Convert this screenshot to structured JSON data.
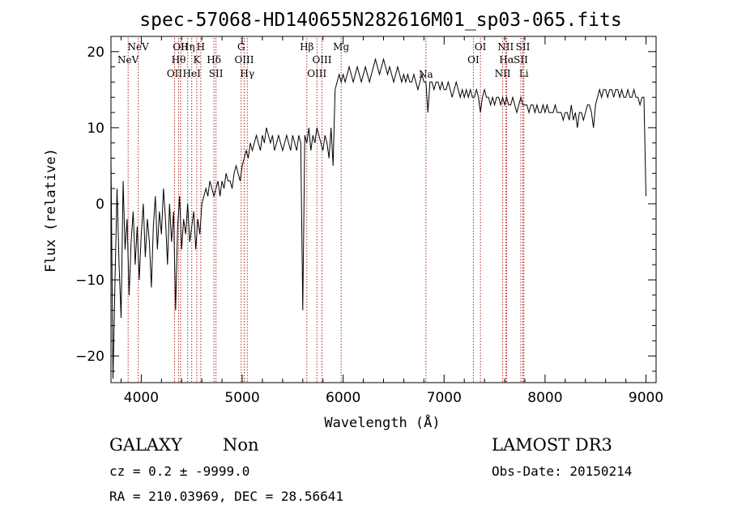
{
  "chart_data": {
    "type": "line",
    "title": "spec-57068-HD140655N282616M01_sp03-065.fits",
    "xlabel": "Wavelength (Å)",
    "ylabel": "Flux (relative)",
    "xlim": [
      3700,
      9100
    ],
    "ylim": [
      -23.5,
      22
    ],
    "xticks": [
      4000,
      5000,
      6000,
      7000,
      8000,
      9000
    ],
    "yticks": [
      -20,
      -10,
      0,
      10,
      20
    ],
    "grid": false,
    "line_color": "#000000",
    "marker_color": "#b22222",
    "spectral_lines": [
      {
        "label": "NeV",
        "x": 3870,
        "row": 1
      },
      {
        "label": "NeV",
        "x": 3970,
        "row": 0
      },
      {
        "label": "OII",
        "x": 4330,
        "row": 2
      },
      {
        "label": "Hθ",
        "x": 4370,
        "row": 1
      },
      {
        "label": "OII",
        "x": 4390,
        "row": 0
      },
      {
        "label": "Hη",
        "x": 4460,
        "row": 0
      },
      {
        "label": "HeI",
        "x": 4500,
        "row": 2
      },
      {
        "label": "K",
        "x": 4550,
        "row": 1
      },
      {
        "label": "H",
        "x": 4590,
        "row": 0
      },
      {
        "label": "Hδ",
        "x": 4720,
        "row": 1
      },
      {
        "label": "SII",
        "x": 4740,
        "row": 2
      },
      {
        "label": "G",
        "x": 4990,
        "row": 0
      },
      {
        "label": "OIII",
        "x": 5020,
        "row": 1
      },
      {
        "label": "Hγ",
        "x": 5050,
        "row": 2
      },
      {
        "label": "Hβ",
        "x": 5640,
        "row": 0
      },
      {
        "label": "OIII",
        "x": 5740,
        "row": 2
      },
      {
        "label": "OIII",
        "x": 5790,
        "row": 1
      },
      {
        "label": "Mg",
        "x": 5980,
        "row": 0
      },
      {
        "label": "Na",
        "x": 6820,
        "row": 99
      },
      {
        "label": "OI",
        "x": 7290,
        "row": 1
      },
      {
        "label": "OI",
        "x": 7360,
        "row": 0
      },
      {
        "label": "NII",
        "x": 7580,
        "row": 2
      },
      {
        "label": "NII",
        "x": 7610,
        "row": 0
      },
      {
        "label": "Hα",
        "x": 7620,
        "row": 1
      },
      {
        "label": "SII",
        "x": 7760,
        "row": 1
      },
      {
        "label": "SII",
        "x": 7780,
        "row": 0
      },
      {
        "label": "Li",
        "x": 7790,
        "row": 2
      }
    ],
    "series": [
      {
        "x": [
          3700,
          3720,
          3740,
          3760,
          3780,
          3800,
          3820,
          3840,
          3860,
          3880,
          3900,
          3920,
          3940,
          3960,
          3980,
          4000,
          4020,
          4040,
          4060,
          4080,
          4100,
          4120,
          4140,
          4160,
          4180,
          4200,
          4220,
          4240,
          4260,
          4280,
          4300,
          4320,
          4340,
          4360,
          4380,
          4400,
          4420,
          4440,
          4460,
          4480,
          4500,
          4520,
          4540,
          4560,
          4580,
          4600,
          4620,
          4640,
          4660,
          4680,
          4700,
          4720,
          4740,
          4760,
          4780,
          4800,
          4820,
          4840,
          4860,
          4880,
          4900,
          4920,
          4940,
          4960,
          4980,
          5000,
          5020,
          5040,
          5060,
          5080,
          5100,
          5120,
          5140,
          5160,
          5180,
          5200,
          5220,
          5240,
          5260,
          5280,
          5300,
          5320,
          5340,
          5360,
          5380,
          5400,
          5420,
          5440,
          5460,
          5480,
          5500,
          5520,
          5540,
          5560,
          5580,
          5600,
          5620,
          5640,
          5660,
          5680,
          5700,
          5720,
          5740,
          5760,
          5780,
          5800,
          5820,
          5840,
          5860,
          5880,
          5900,
          5920,
          5940,
          5960,
          5980,
          6000,
          6020,
          6040,
          6060,
          6080,
          6100,
          6120,
          6140,
          6160,
          6180,
          6200,
          6220,
          6240,
          6260,
          6280,
          6300,
          6320,
          6340,
          6360,
          6380,
          6400,
          6420,
          6440,
          6460,
          6480,
          6500,
          6520,
          6540,
          6560,
          6580,
          6600,
          6620,
          6640,
          6660,
          6680,
          6700,
          6720,
          6740,
          6760,
          6780,
          6800,
          6820,
          6840,
          6860,
          6880,
          6900,
          6920,
          6940,
          6960,
          6980,
          7000,
          7020,
          7040,
          7060,
          7080,
          7100,
          7120,
          7140,
          7160,
          7180,
          7200,
          7220,
          7240,
          7260,
          7280,
          7300,
          7320,
          7340,
          7360,
          7380,
          7400,
          7420,
          7440,
          7460,
          7480,
          7500,
          7520,
          7540,
          7560,
          7580,
          7600,
          7620,
          7640,
          7660,
          7680,
          7700,
          7720,
          7740,
          7760,
          7780,
          7800,
          7820,
          7840,
          7860,
          7880,
          7900,
          7920,
          7940,
          7960,
          7980,
          8000,
          8020,
          8040,
          8060,
          8080,
          8100,
          8120,
          8140,
          8160,
          8180,
          8200,
          8220,
          8240,
          8260,
          8280,
          8300,
          8320,
          8340,
          8360,
          8380,
          8400,
          8420,
          8440,
          8460,
          8480,
          8500,
          8520,
          8540,
          8560,
          8580,
          8600,
          8620,
          8640,
          8660,
          8680,
          8700,
          8720,
          8740,
          8760,
          8780,
          8800,
          8820,
          8840,
          8860,
          8880,
          8900,
          8920,
          8940,
          8960,
          8980,
          9000
        ],
        "y": [
          6,
          -23,
          -10,
          2,
          -8,
          -15,
          3,
          -6,
          -2,
          -12,
          -5,
          -1,
          -8,
          -3,
          -10,
          -4,
          0,
          -7,
          -2,
          -5,
          -11,
          -3,
          1,
          -6,
          -1,
          -4,
          2,
          -2,
          -8,
          0,
          -5,
          -1,
          -14,
          -3,
          1,
          -6,
          -2,
          -4,
          0,
          -5,
          -3,
          -1,
          -6,
          -2,
          -4,
          0,
          1,
          2,
          1,
          3,
          2,
          1,
          2,
          3,
          1,
          3,
          2,
          4,
          3,
          3,
          2,
          4,
          5,
          4,
          3,
          5,
          6,
          7,
          6,
          8,
          7,
          8,
          9,
          8,
          7,
          9,
          8,
          10,
          9,
          8,
          9,
          7,
          8,
          9,
          8,
          7,
          8,
          9,
          8,
          7,
          9,
          8,
          7,
          9,
          8,
          -14,
          9,
          8,
          10,
          7,
          9,
          8,
          10,
          9,
          8,
          7,
          9,
          8,
          6,
          10,
          5,
          15,
          16,
          17,
          16,
          17,
          16,
          17,
          18,
          17,
          16,
          17,
          18,
          17,
          16,
          17,
          18,
          17,
          16,
          17,
          18,
          19,
          18,
          17,
          18,
          19,
          18,
          17,
          18,
          17,
          16,
          17,
          18,
          17,
          16,
          17,
          16,
          17,
          16,
          16,
          17,
          16,
          15,
          16,
          17,
          16,
          16,
          12,
          16,
          16,
          15,
          16,
          16,
          15,
          16,
          15,
          15,
          16,
          15,
          14,
          15,
          16,
          15,
          14,
          15,
          14,
          15,
          14,
          15,
          14,
          14,
          15,
          14,
          12,
          14,
          15,
          14,
          14,
          13,
          14,
          13,
          14,
          14,
          13,
          14,
          13,
          14,
          13,
          13,
          14,
          13,
          12,
          13,
          14,
          13,
          13,
          13,
          12,
          13,
          13,
          12,
          13,
          12,
          12,
          13,
          12,
          13,
          12,
          12,
          12,
          13,
          12,
          12,
          12,
          11,
          12,
          12,
          11,
          13,
          11,
          12,
          10,
          12,
          12,
          11,
          12,
          13,
          13,
          12,
          10,
          13,
          14,
          15,
          14,
          15,
          15,
          14,
          15,
          15,
          14,
          15,
          15,
          14,
          15,
          14,
          14,
          15,
          14,
          14,
          15,
          14,
          14,
          13,
          14,
          14,
          1
        ]
      }
    ]
  },
  "footer": {
    "class_label": "GALAXY",
    "subclass_label": "Non",
    "cz_text": "cz = 0.2 ± -9999.0",
    "radec_text": "RA = 210.03969, DEC =  28.56641",
    "survey_label": "LAMOST DR3",
    "obsdate_text": "Obs-Date: 20150214"
  }
}
